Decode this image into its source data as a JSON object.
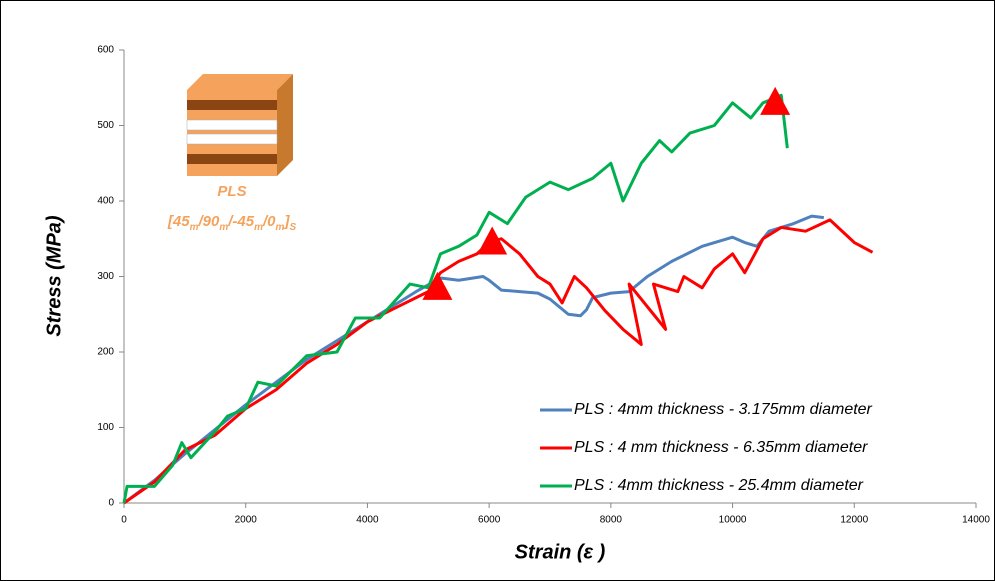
{
  "chart_data": {
    "type": "line",
    "x_label": "Strain (ε )",
    "y_label": "Stress (MPa)",
    "xlim": [
      0,
      14000
    ],
    "xticks": [
      0,
      2000,
      4000,
      6000,
      8000,
      10000,
      12000,
      14000
    ],
    "ylim": [
      0,
      600
    ],
    "yticks": [
      0,
      100,
      200,
      300,
      400,
      500,
      600
    ],
    "grid": false,
    "legend": "lower right",
    "inset_label": "PLS",
    "inset_layup": [
      "[45",
      "m",
      "/90",
      "m",
      "/-45",
      "m",
      "/0",
      "m",
      "]",
      "S"
    ],
    "series": [
      {
        "name": "PLS : 4mm thickness - 3.175mm diameter",
        "color": "#4f81bd",
        "x": [
          0,
          500,
          1000,
          2000,
          3000,
          4000,
          4800,
          5200,
          5500,
          5900,
          6000,
          6200,
          6800,
          7000,
          7300,
          7500,
          7600,
          7700,
          8000,
          8300,
          8600,
          9000,
          9500,
          10000,
          10200,
          10400,
          10600,
          11000,
          11300,
          11500
        ],
        "values": [
          0,
          30,
          65,
          130,
          190,
          240,
          280,
          298,
          295,
          300,
          295,
          282,
          278,
          270,
          250,
          248,
          256,
          272,
          278,
          280,
          300,
          320,
          340,
          352,
          345,
          340,
          360,
          370,
          380,
          378
        ]
      },
      {
        "name": "PLS : 4 mm thickness - 6.35mm diameter",
        "color": "#ff0000",
        "x": [
          0,
          500,
          1000,
          1500,
          2000,
          2500,
          3000,
          3500,
          4000,
          4500,
          5000,
          5200,
          5500,
          5800,
          6000,
          6200,
          6500,
          6800,
          7000,
          7200,
          7400,
          7600,
          7900,
          8200,
          8500,
          8300,
          8700,
          8900,
          8700,
          9100,
          9200,
          9500,
          9700,
          10000,
          10200,
          10500,
          10800,
          11200,
          11600,
          12000,
          12300
        ],
        "values": [
          0,
          28,
          70,
          90,
          125,
          150,
          185,
          210,
          240,
          260,
          280,
          305,
          320,
          330,
          345,
          350,
          330,
          300,
          290,
          265,
          300,
          285,
          255,
          230,
          210,
          290,
          250,
          230,
          290,
          280,
          300,
          285,
          310,
          330,
          305,
          350,
          365,
          360,
          375,
          345,
          332
        ]
      },
      {
        "name": "PLS : 4mm thickness - 25.4mm diameter",
        "color": "#00b050",
        "x": [
          0,
          50,
          500,
          800,
          950,
          1100,
          1500,
          1700,
          2000,
          2200,
          2500,
          3000,
          3500,
          3800,
          4200,
          4700,
          5000,
          5200,
          5500,
          5800,
          6000,
          6300,
          6600,
          7000,
          7300,
          7700,
          8000,
          8200,
          8500,
          8800,
          9000,
          9300,
          9700,
          10000,
          10300,
          10500,
          10800,
          10900
        ],
        "values": [
          0,
          22,
          22,
          50,
          80,
          60,
          95,
          115,
          125,
          160,
          155,
          195,
          200,
          245,
          245,
          290,
          285,
          330,
          340,
          355,
          385,
          370,
          405,
          425,
          415,
          430,
          450,
          400,
          450,
          480,
          465,
          490,
          500,
          530,
          510,
          530,
          540,
          470
        ]
      }
    ],
    "failure_markers": {
      "color": "#ff0000",
      "x": [
        5150,
        6050,
        10700
      ],
      "values": [
        285,
        345,
        530
      ]
    }
  }
}
